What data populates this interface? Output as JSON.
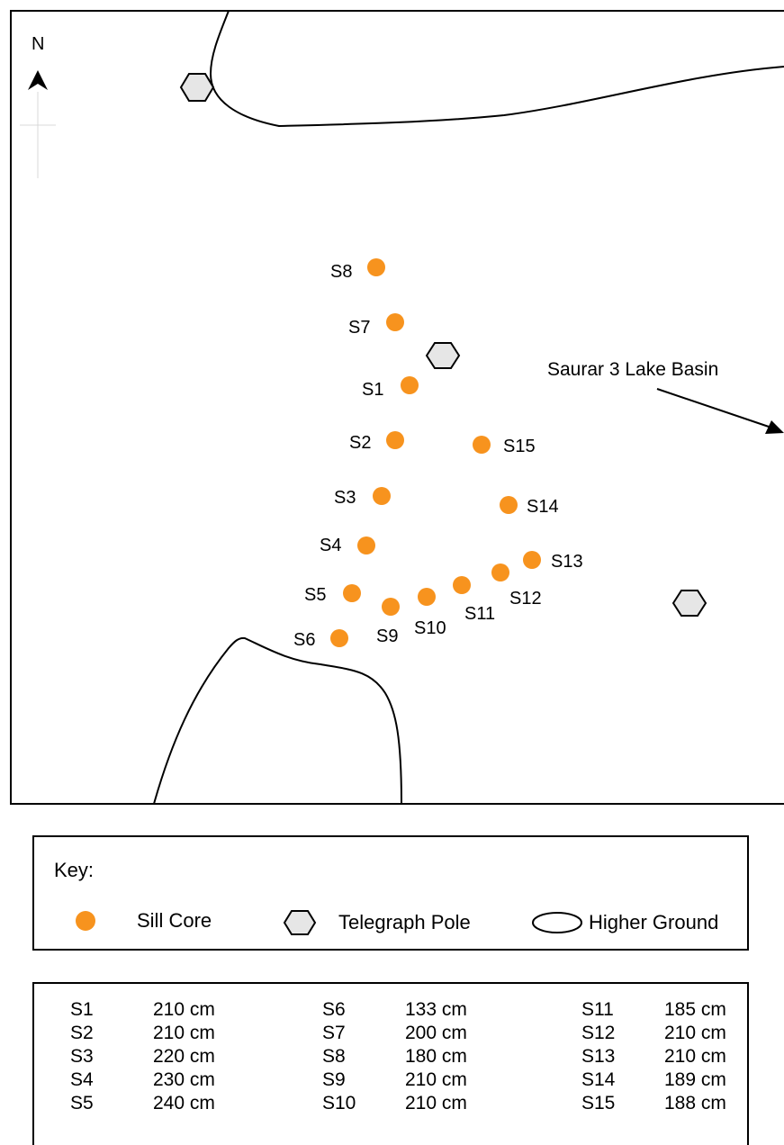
{
  "map": {
    "north_label": "N",
    "basin_label": "Saurar 3 Lake Basin",
    "colors": {
      "sill_core": "#F7931E",
      "pole_fill": "#E6E6E6",
      "outline": "#000000"
    },
    "sill_cores": [
      {
        "id": "S1"
      },
      {
        "id": "S2"
      },
      {
        "id": "S3"
      },
      {
        "id": "S4"
      },
      {
        "id": "S5"
      },
      {
        "id": "S6"
      },
      {
        "id": "S7"
      },
      {
        "id": "S8"
      },
      {
        "id": "S9"
      },
      {
        "id": "S10"
      },
      {
        "id": "S11"
      },
      {
        "id": "S12"
      },
      {
        "id": "S13"
      },
      {
        "id": "S14"
      },
      {
        "id": "S15"
      }
    ]
  },
  "key": {
    "title": "Key:",
    "sill_core": "Sill Core",
    "telegraph_pole": "Telegraph Pole",
    "higher_ground": "Higher Ground"
  },
  "depths": [
    {
      "id": "S1",
      "value": "210 cm"
    },
    {
      "id": "S2",
      "value": "210 cm"
    },
    {
      "id": "S3",
      "value": "220 cm"
    },
    {
      "id": "S4",
      "value": "230 cm"
    },
    {
      "id": "S5",
      "value": "240 cm"
    },
    {
      "id": "S6",
      "value": "133 cm"
    },
    {
      "id": "S7",
      "value": "200 cm"
    },
    {
      "id": "S8",
      "value": "180 cm"
    },
    {
      "id": "S9",
      "value": "210 cm"
    },
    {
      "id": "S10",
      "value": "210 cm"
    },
    {
      "id": "S11",
      "value": "185 cm"
    },
    {
      "id": "S12",
      "value": "210 cm"
    },
    {
      "id": "S13",
      "value": "210 cm"
    },
    {
      "id": "S14",
      "value": "189 cm"
    },
    {
      "id": "S15",
      "value": "188 cm"
    }
  ]
}
